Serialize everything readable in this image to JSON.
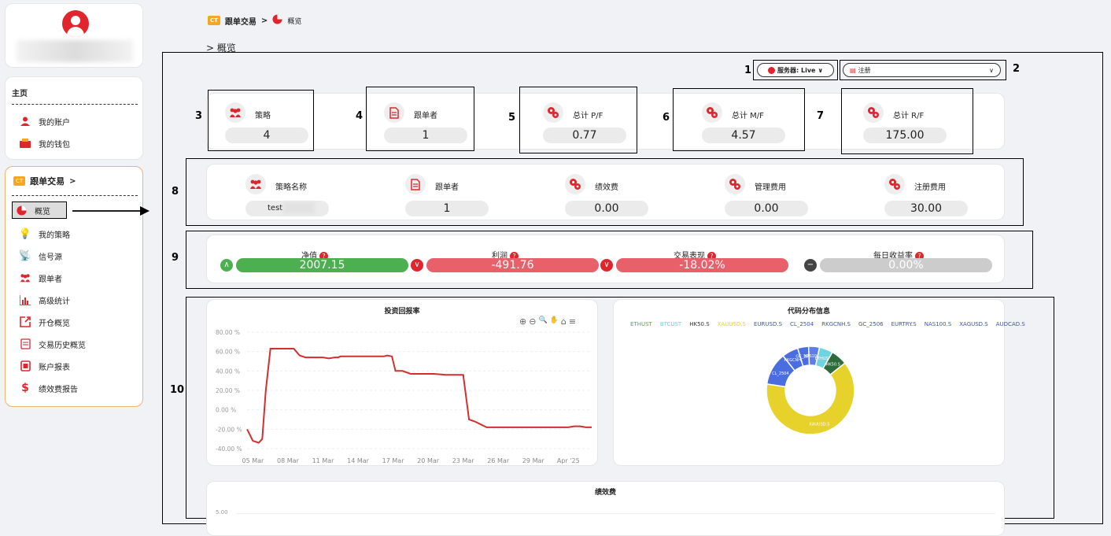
{
  "breadcrumb": {
    "logo": "CT",
    "copy_trading": "跟单交易",
    "sep": ">",
    "overview": "概览"
  },
  "section_title": "> 概览",
  "sidebar": {
    "home_title": "主页",
    "home_items": [
      {
        "label": "我的账户",
        "icon": "user-icon"
      },
      {
        "label": "我的钱包",
        "icon": "wallet-icon"
      }
    ],
    "copy_title": "跟单交易",
    "copy_arrow": ">",
    "copy_items": [
      {
        "label": "概览",
        "icon": "pie-icon"
      },
      {
        "label": "我的策略",
        "icon": "lightbulb-icon"
      },
      {
        "label": "信号源",
        "icon": "signal-icon"
      },
      {
        "label": "跟单者",
        "icon": "users-icon"
      },
      {
        "label": "高级统计",
        "icon": "bar-chart-icon"
      },
      {
        "label": "开仓概览",
        "icon": "open-position-icon"
      },
      {
        "label": "交易历史概览",
        "icon": "history-icon"
      },
      {
        "label": "账户报表",
        "icon": "report-icon"
      },
      {
        "label": "绩效费报告",
        "icon": "dollar-icon"
      }
    ]
  },
  "server": {
    "label": "服务器: Live",
    "arrow": "∨"
  },
  "account_select": {
    "value": "注册",
    "arrow": "∨"
  },
  "annotations": [
    "1",
    "2",
    "3",
    "4",
    "5",
    "6",
    "7",
    "8",
    "9",
    "10"
  ],
  "summary": [
    {
      "label": "策略",
      "value": "4",
      "icon": "users-icon"
    },
    {
      "label": "跟单者",
      "value": "1",
      "icon": "document-icon"
    },
    {
      "label": "总计 P/F",
      "value": "0.77",
      "icon": "gears-icon"
    },
    {
      "label": "总计 M/F",
      "value": "4.57",
      "icon": "gears-icon"
    },
    {
      "label": "总计 R/F",
      "value": "175.00",
      "icon": "gears-icon"
    }
  ],
  "strategy": [
    {
      "label": "策略名称",
      "value": "test",
      "icon": "users-icon"
    },
    {
      "label": "跟单者",
      "value": "1",
      "icon": "document-icon"
    },
    {
      "label": "绩效费",
      "value": "0.00",
      "icon": "gears-icon"
    },
    {
      "label": "管理费用",
      "value": "0.00",
      "icon": "gears-icon"
    },
    {
      "label": "注册费用",
      "value": "30.00",
      "icon": "gears-icon"
    }
  ],
  "metrics": [
    {
      "label": "净值",
      "value": "2007.15",
      "trend": "up",
      "color": "#4caf50"
    },
    {
      "label": "利润",
      "value": "-491.76",
      "trend": "down",
      "color": "#e8606a"
    },
    {
      "label": "交易表现",
      "value": "-18.02%",
      "trend": "down",
      "color": "#e8606a"
    },
    {
      "label": "每日收益率",
      "value": "0.00%",
      "trend": "flat",
      "color": "#cccccc"
    }
  ],
  "help_icon": "?",
  "return_chart": {
    "title": "投资回报率",
    "toolbar": [
      "⊕",
      "⊖",
      "🔍",
      "✋",
      "⌂",
      "≡"
    ]
  },
  "chart_data": [
    {
      "type": "line",
      "title": "投资回报率",
      "y_ticks": [
        "80.00 %",
        "60.00 %",
        "40.00 %",
        "20.00 %",
        "0.00 %",
        "-20.00 %",
        "-40.00 %"
      ],
      "x_ticks": [
        "05 Mar",
        "08 Mar",
        "11 Mar",
        "14 Mar",
        "17 Mar",
        "20 Mar",
        "23 Mar",
        "26 Mar",
        "29 Mar",
        "Apr '25"
      ],
      "ylim": [
        -40,
        80
      ],
      "series": [
        {
          "color": "#d32f2f",
          "x": [
            0,
            0.5,
            1,
            1.3,
            1.6,
            2,
            2.5,
            3,
            3.3,
            3.6,
            4,
            4.5,
            5,
            5.5,
            6,
            6.5,
            7,
            7.5,
            7.8,
            8,
            8.3,
            8.7,
            9,
            9.4,
            9.8,
            10.2,
            10.6,
            11,
            11.4,
            11.7,
            12,
            12.4,
            12.7,
            13,
            13.3,
            14,
            15,
            16,
            17,
            17.5,
            18,
            18.5,
            19,
            19.5,
            20,
            20.5,
            21,
            21.5,
            22,
            23,
            24,
            25,
            26,
            26.5,
            27,
            27.5,
            28,
            28.5,
            29,
            29.5
          ],
          "y": [
            -20,
            -32,
            -34,
            -30,
            20,
            63,
            63,
            63,
            63,
            63,
            63,
            56,
            54,
            54,
            54,
            54,
            53,
            54,
            54,
            55,
            55,
            55,
            55,
            55,
            55,
            55,
            55,
            55,
            55,
            55,
            56,
            55,
            40,
            40,
            40,
            37,
            37,
            37,
            36,
            36,
            36,
            36,
            -10,
            -12,
            -15,
            -18,
            -18,
            -18,
            -18,
            -18,
            -18,
            -18,
            -18,
            -18,
            -18,
            -18,
            -17,
            -17,
            -18,
            -18
          ]
        }
      ]
    },
    {
      "type": "pie",
      "title": "代码分布信息",
      "legend": [
        "ETHUST",
        "BTCUST",
        "HK50.S",
        "XAUUSD.S",
        "EURUSD.S",
        "CL_2504",
        "RKGCNH.S",
        "GC_2506",
        "EURTRY.S",
        "NAS100.S",
        "XAGUSD.S",
        "AUDCAD.S"
      ],
      "legend_colors": [
        "#4caf50",
        "#6fd3e0",
        "#333333",
        "#e6d22a",
        "#3f51b5",
        "#3f51b5",
        "#3f51b5",
        "#3f51b5",
        "#3f51b5",
        "#3f51b5",
        "#3f51b5",
        "#3f51b5"
      ],
      "slices": [
        {
          "name": "XAUUSD.S",
          "value": 63,
          "color": "#e6d22a"
        },
        {
          "name": "CL_2504",
          "value": 12,
          "color": "#4a6ee0"
        },
        {
          "name": "RKGCNH.S",
          "value": 6,
          "color": "#4a6ee0"
        },
        {
          "name": "GC_2506",
          "value": 4,
          "color": "#4a6ee0"
        },
        {
          "name": "NAS100.S",
          "value": 4,
          "color": "#5f7de6"
        },
        {
          "name": "ETHUST",
          "value": 5,
          "color": "#6fd3e0"
        },
        {
          "name": "HK50.S",
          "value": 6,
          "color": "#2e6b3a"
        }
      ],
      "slice_labels": [
        "XAUUSD.S",
        "CL_2504",
        "RKGCNH.S",
        "GC_2506",
        "NAS100.S",
        "ETHUST",
        "HK50.S"
      ]
    },
    {
      "type": "bar",
      "title": "绩效费",
      "y_ticks": [
        "5.00"
      ]
    }
  ]
}
